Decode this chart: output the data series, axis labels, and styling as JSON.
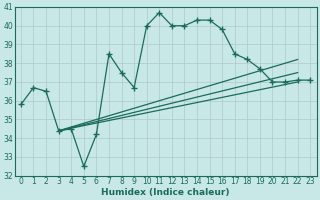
{
  "xlabel": "Humidex (Indice chaleur)",
  "xlim": [
    -0.5,
    23.5
  ],
  "ylim": [
    32,
    41
  ],
  "yticks": [
    32,
    33,
    34,
    35,
    36,
    37,
    38,
    39,
    40,
    41
  ],
  "xticks": [
    0,
    1,
    2,
    3,
    4,
    5,
    6,
    7,
    8,
    9,
    10,
    11,
    12,
    13,
    14,
    15,
    16,
    17,
    18,
    19,
    20,
    21,
    22,
    23
  ],
  "bg_color": "#c8e8e8",
  "line_color": "#1a6b5a",
  "wavy_line": {
    "x": [
      0,
      1,
      2,
      3,
      4,
      5,
      6,
      7,
      8,
      9,
      10,
      11,
      12,
      13,
      14,
      15,
      16,
      17,
      18,
      19,
      20,
      21,
      22,
      23
    ],
    "y": [
      35.8,
      36.7,
      36.5,
      34.4,
      34.5,
      32.5,
      34.2,
      38.5,
      37.5,
      36.7,
      40.0,
      40.7,
      40.0,
      40.0,
      40.3,
      40.3,
      39.8,
      38.5,
      38.2,
      37.7,
      37.0,
      37.0,
      37.1,
      37.1
    ]
  },
  "straight_lines": [
    {
      "x": [
        3,
        22
      ],
      "y": [
        34.4,
        38.2
      ]
    },
    {
      "x": [
        3,
        22
      ],
      "y": [
        34.4,
        37.5
      ]
    },
    {
      "x": [
        3,
        22
      ],
      "y": [
        34.4,
        37.0
      ]
    }
  ]
}
